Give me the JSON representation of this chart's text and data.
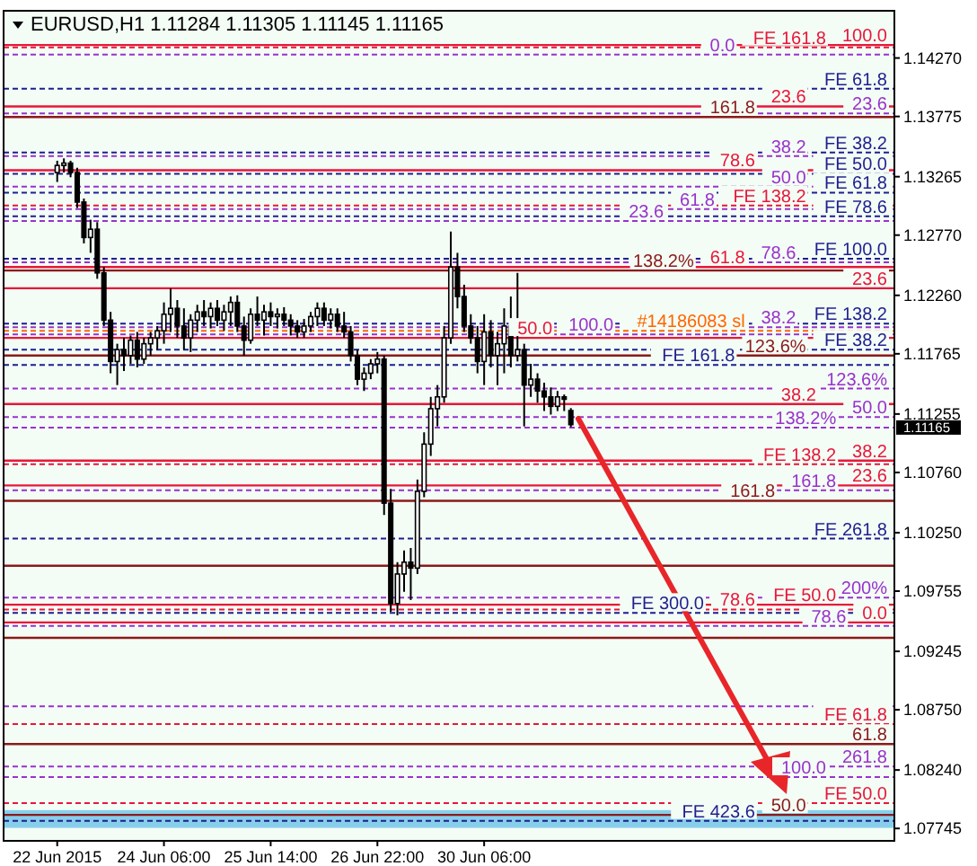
{
  "chart_data": {
    "type": "candlestick",
    "title": "EURUSD,H1  1.11284 1.11305 1.11145 1.11165",
    "categories": [
      "22 Jun 2015",
      null,
      null,
      null,
      null,
      null,
      null,
      null,
      null,
      null,
      null,
      null,
      null,
      null,
      null,
      null,
      "24 Jun 06:00",
      null,
      null,
      null,
      null,
      null,
      null,
      null,
      null,
      null,
      null,
      null,
      null,
      null,
      null,
      null,
      "25 Jun 14:00",
      null,
      null,
      null,
      null,
      null,
      null,
      null,
      null,
      null,
      null,
      null,
      null,
      null,
      null,
      null,
      "26 Jun 22:00",
      null,
      null,
      null,
      null,
      null,
      null,
      null,
      null,
      null,
      null,
      null,
      null,
      null,
      null,
      null,
      "30 Jun 06:00",
      null,
      null,
      null,
      null,
      null,
      null,
      null,
      null,
      null,
      null,
      null,
      null,
      null,
      null,
      null,
      null,
      null,
      null,
      null,
      null,
      null,
      null,
      null,
      null,
      null,
      null,
      null,
      null,
      null,
      null,
      null,
      null,
      null,
      null,
      null,
      null,
      null,
      null,
      null,
      null,
      null,
      null,
      null,
      null,
      null,
      null,
      null,
      null,
      null,
      null,
      null,
      null,
      null,
      null,
      null,
      null,
      null,
      null,
      null,
      null,
      null
    ],
    "ohlc": [
      [
        1.133,
        1.134,
        1.1322,
        1.1336
      ],
      [
        1.1336,
        1.1342,
        1.133,
        1.1338
      ],
      [
        1.1338,
        1.134,
        1.1326,
        1.133
      ],
      [
        1.133,
        1.1334,
        1.13,
        1.1305
      ],
      [
        1.1305,
        1.1308,
        1.127,
        1.1275
      ],
      [
        1.1275,
        1.129,
        1.1262,
        1.1282
      ],
      [
        1.1282,
        1.1288,
        1.124,
        1.1245
      ],
      [
        1.1245,
        1.125,
        1.12,
        1.1205
      ],
      [
        1.1205,
        1.1212,
        1.116,
        1.117
      ],
      [
        1.117,
        1.1185,
        1.115,
        1.118
      ],
      [
        1.118,
        1.119,
        1.1162,
        1.1175
      ],
      [
        1.1175,
        1.1192,
        1.1168,
        1.1188
      ],
      [
        1.1188,
        1.1195,
        1.1165,
        1.1172
      ],
      [
        1.1172,
        1.119,
        1.1168,
        1.1185
      ],
      [
        1.1185,
        1.1195,
        1.1175,
        1.119
      ],
      [
        1.119,
        1.12,
        1.118,
        1.1196
      ],
      [
        1.1196,
        1.122,
        1.1185,
        1.121
      ],
      [
        1.121,
        1.1232,
        1.1195,
        1.1215
      ],
      [
        1.1215,
        1.1222,
        1.119,
        1.12
      ],
      [
        1.12,
        1.1215,
        1.118,
        1.119
      ],
      [
        1.119,
        1.121,
        1.1178,
        1.1205
      ],
      [
        1.1205,
        1.1218,
        1.1195,
        1.1212
      ],
      [
        1.1212,
        1.1222,
        1.12,
        1.1208
      ],
      [
        1.1208,
        1.122,
        1.1198,
        1.1215
      ],
      [
        1.1215,
        1.1222,
        1.12,
        1.1205
      ],
      [
        1.1205,
        1.1218,
        1.1196,
        1.1212
      ],
      [
        1.1212,
        1.1225,
        1.12,
        1.122
      ],
      [
        1.122,
        1.1226,
        1.1195,
        1.12
      ],
      [
        1.12,
        1.1208,
        1.1175,
        1.1188
      ],
      [
        1.1188,
        1.1215,
        1.1185,
        1.121
      ],
      [
        1.121,
        1.1225,
        1.12,
        1.1205
      ],
      [
        1.1205,
        1.1218,
        1.1192,
        1.1212
      ],
      [
        1.1212,
        1.122,
        1.12,
        1.1208
      ],
      [
        1.1208,
        1.1215,
        1.1198,
        1.121
      ],
      [
        1.121,
        1.1216,
        1.12,
        1.1205
      ],
      [
        1.1205,
        1.121,
        1.1192,
        1.12
      ],
      [
        1.12,
        1.1205,
        1.119,
        1.1195
      ],
      [
        1.1195,
        1.1206,
        1.119,
        1.12
      ],
      [
        1.12,
        1.1212,
        1.1195,
        1.1208
      ],
      [
        1.1208,
        1.122,
        1.12,
        1.1215
      ],
      [
        1.1215,
        1.122,
        1.12,
        1.1205
      ],
      [
        1.1205,
        1.1215,
        1.1198,
        1.121
      ],
      [
        1.121,
        1.1215,
        1.1195,
        1.12
      ],
      [
        1.12,
        1.1212,
        1.119,
        1.1195
      ],
      [
        1.1195,
        1.12,
        1.117,
        1.1175
      ],
      [
        1.1175,
        1.118,
        1.115,
        1.1155
      ],
      [
        1.1155,
        1.1165,
        1.1145,
        1.116
      ],
      [
        1.116,
        1.1172,
        1.1155,
        1.1168
      ],
      [
        1.1168,
        1.1178,
        1.116,
        1.1172
      ],
      [
        1.1172,
        1.1175,
        1.104,
        1.105
      ],
      [
        1.105,
        1.1062,
        1.0958,
        1.0965
      ],
      [
        1.0965,
        1.1,
        1.0955,
        1.099
      ],
      [
        1.099,
        1.101,
        1.0975,
        1.1
      ],
      [
        1.1,
        1.1012,
        1.0968,
        1.0995
      ],
      [
        1.0995,
        1.107,
        1.099,
        1.106
      ],
      [
        1.106,
        1.111,
        1.1055,
        1.11
      ],
      [
        1.11,
        1.114,
        1.109,
        1.113
      ],
      [
        1.113,
        1.115,
        1.1115,
        1.114
      ],
      [
        1.114,
        1.12,
        1.1135,
        1.119
      ],
      [
        1.119,
        1.128,
        1.1185,
        1.125
      ],
      [
        1.125,
        1.1262,
        1.1215,
        1.1225
      ],
      [
        1.1225,
        1.1235,
        1.1195,
        1.12
      ],
      [
        1.12,
        1.121,
        1.1185,
        1.119
      ],
      [
        1.119,
        1.12,
        1.116,
        1.117
      ],
      [
        1.117,
        1.121,
        1.115,
        1.1195
      ],
      [
        1.1195,
        1.1205,
        1.1165,
        1.1175
      ],
      [
        1.1175,
        1.1195,
        1.115,
        1.1185
      ],
      [
        1.1185,
        1.1215,
        1.116,
        1.12
      ],
      [
        1.12,
        1.1225,
        1.1165,
        1.1175
      ],
      [
        1.1175,
        1.1245,
        1.117,
        1.118
      ],
      [
        1.118,
        1.1185,
        1.1115,
        1.115
      ],
      [
        1.115,
        1.1168,
        1.114,
        1.1155
      ],
      [
        1.1155,
        1.116,
        1.1135,
        1.1145
      ],
      [
        1.1145,
        1.1152,
        1.1128,
        1.114
      ],
      [
        1.114,
        1.1148,
        1.1125,
        1.1132
      ],
      [
        1.1132,
        1.1145,
        1.1128,
        1.114
      ],
      [
        1.114,
        1.1142,
        1.1128,
        1.1138
      ],
      [
        1.11284,
        1.11305,
        1.11145,
        1.11165
      ],
      null,
      null,
      null,
      null,
      null,
      null,
      null,
      null,
      null,
      null,
      null,
      null,
      null,
      null,
      null,
      null,
      null,
      null,
      null,
      null,
      null,
      null,
      null,
      null,
      null,
      null,
      null,
      null,
      null,
      null,
      null,
      null,
      null,
      null,
      null,
      null,
      null,
      null,
      null,
      null,
      null,
      null,
      null,
      null,
      null,
      null,
      null,
      null
    ],
    "color": "#000000",
    "ylim": [
      1.0764,
      1.1467
    ],
    "yticks": [
      {
        "value": 1.1427,
        "label": "1.14270"
      },
      {
        "value": 1.13775,
        "label": "1.13775"
      },
      {
        "value": 1.13265,
        "label": "1.13265"
      },
      {
        "value": 1.1277,
        "label": "1.12770"
      },
      {
        "value": 1.1226,
        "label": "1.12260"
      },
      {
        "value": 1.11765,
        "label": "1.11765"
      },
      {
        "value": 1.11255,
        "label": "1.11255"
      },
      {
        "value": 1.1076,
        "label": "1.10760"
      },
      {
        "value": 1.1025,
        "label": "1.10250"
      },
      {
        "value": 1.09755,
        "label": "1.09755"
      },
      {
        "value": 1.09245,
        "label": "1.09245"
      },
      {
        "value": 1.0875,
        "label": "1.08750"
      },
      {
        "value": 1.0824,
        "label": "1.08240"
      },
      {
        "value": 1.07745,
        "label": "1.07745"
      }
    ],
    "ref_lines": [
      {
        "axis": "y",
        "value": 1.1438,
        "color": "#e8173a",
        "line_style": "solid"
      },
      {
        "axis": "y",
        "value": 1.1436,
        "color": "#e8173a",
        "line_style": "dashed"
      },
      {
        "axis": "y",
        "value": 1.143,
        "color": "#9932cc",
        "line_style": "dashed"
      },
      {
        "axis": "y",
        "value": 1.1401,
        "color": "#1f1f8f",
        "line_style": "dashed"
      },
      {
        "axis": "y",
        "value": 1.1386,
        "color": "#e8173a",
        "line_style": "solid"
      },
      {
        "axis": "y",
        "value": 1.138,
        "color": "#9932cc",
        "line_style": "dashed"
      },
      {
        "axis": "y",
        "value": 1.1377,
        "color": "#8b1a1a",
        "line_style": "solid"
      },
      {
        "axis": "y",
        "value": 1.1347,
        "color": "#1f1f8f",
        "line_style": "dashed"
      },
      {
        "axis": "y",
        "value": 1.1344,
        "color": "#9932cc",
        "line_style": "dashed"
      },
      {
        "axis": "y",
        "value": 1.1332,
        "color": "#e8173a",
        "line_style": "solid"
      },
      {
        "axis": "y",
        "value": 1.1329,
        "color": "#1f1f8f",
        "line_style": "dashed"
      },
      {
        "axis": "y",
        "value": 1.1318,
        "color": "#9932cc",
        "line_style": "dashed"
      },
      {
        "axis": "y",
        "value": 1.1313,
        "color": "#1f1f8f",
        "line_style": "dashed"
      },
      {
        "axis": "y",
        "value": 1.1302,
        "color": "#e8173a",
        "line_style": "dashed"
      },
      {
        "axis": "y",
        "value": 1.1299,
        "color": "#9932cc",
        "line_style": "dashed"
      },
      {
        "axis": "y",
        "value": 1.1293,
        "color": "#1f1f8f",
        "line_style": "dashed"
      },
      {
        "axis": "y",
        "value": 1.1289,
        "color": "#9932cc",
        "line_style": "dashed"
      },
      {
        "axis": "y",
        "value": 1.1257,
        "color": "#1f1f8f",
        "line_style": "dashed"
      },
      {
        "axis": "y",
        "value": 1.1254,
        "color": "#9932cc",
        "line_style": "dashed"
      },
      {
        "axis": "y",
        "value": 1.125,
        "color": "#e8173a",
        "line_style": "solid"
      },
      {
        "axis": "y",
        "value": 1.1247,
        "color": "#8b1a1a",
        "line_style": "solid"
      },
      {
        "axis": "y",
        "value": 1.1232,
        "color": "#e8173a",
        "line_style": "solid"
      },
      {
        "axis": "y",
        "value": 1.1202,
        "color": "#1f1f8f",
        "line_style": "dashed"
      },
      {
        "axis": "y",
        "value": 1.1199,
        "color": "#9932cc",
        "line_style": "dashed"
      },
      {
        "axis": "y",
        "value": 1.1196,
        "color": "#ff6600",
        "line_style": "dashed"
      },
      {
        "axis": "y",
        "value": 1.1193,
        "color": "#9932cc",
        "line_style": "dashed"
      },
      {
        "axis": "y",
        "value": 1.119,
        "color": "#e8173a",
        "line_style": "solid"
      },
      {
        "axis": "y",
        "value": 1.118,
        "color": "#1f1f8f",
        "line_style": "dashed"
      },
      {
        "axis": "y",
        "value": 1.1175,
        "color": "#8b1a1a",
        "line_style": "solid"
      },
      {
        "axis": "y",
        "value": 1.1167,
        "color": "#1f1f8f",
        "line_style": "dashed"
      },
      {
        "axis": "y",
        "value": 1.1147,
        "color": "#9932cc",
        "line_style": "dashed"
      },
      {
        "axis": "y",
        "value": 1.1134,
        "color": "#e8173a",
        "line_style": "solid"
      },
      {
        "axis": "y",
        "value": 1.1123,
        "color": "#9932cc",
        "line_style": "dashed"
      },
      {
        "axis": "y",
        "value": 1.1114,
        "color": "#9932cc",
        "line_style": "dashed"
      },
      {
        "axis": "y",
        "value": 1.1086,
        "color": "#e8173a",
        "line_style": "solid"
      },
      {
        "axis": "y",
        "value": 1.1083,
        "color": "#e8173a",
        "line_style": "dashed"
      },
      {
        "axis": "y",
        "value": 1.1065,
        "color": "#e8173a",
        "line_style": "solid"
      },
      {
        "axis": "y",
        "value": 1.1061,
        "color": "#9932cc",
        "line_style": "dashed"
      },
      {
        "axis": "y",
        "value": 1.1052,
        "color": "#8b1a1a",
        "line_style": "solid"
      },
      {
        "axis": "y",
        "value": 1.102,
        "color": "#1f1f8f",
        "line_style": "dashed"
      },
      {
        "axis": "y",
        "value": 1.0997,
        "color": "#8b1a1a",
        "line_style": "solid"
      },
      {
        "axis": "y",
        "value": 1.097,
        "color": "#9932cc",
        "line_style": "dashed"
      },
      {
        "axis": "y",
        "value": 1.0964,
        "color": "#e8173a",
        "line_style": "solid"
      },
      {
        "axis": "y",
        "value": 1.096,
        "color": "#e8173a",
        "line_style": "dashed"
      },
      {
        "axis": "y",
        "value": 1.0957,
        "color": "#1f1f8f",
        "line_style": "dashed"
      },
      {
        "axis": "y",
        "value": 1.0949,
        "color": "#e8173a",
        "line_style": "solid"
      },
      {
        "axis": "y",
        "value": 1.0946,
        "color": "#9932cc",
        "line_style": "dashed"
      },
      {
        "axis": "y",
        "value": 1.0936,
        "color": "#8b1a1a",
        "line_style": "solid"
      },
      {
        "axis": "y",
        "value": 1.0878,
        "color": "#9932cc",
        "line_style": "dashed"
      },
      {
        "axis": "y",
        "value": 1.0863,
        "color": "#e8173a",
        "line_style": "dashed"
      },
      {
        "axis": "y",
        "value": 1.0846,
        "color": "#8b1a1a",
        "line_style": "solid"
      },
      {
        "axis": "y",
        "value": 1.0827,
        "color": "#9932cc",
        "line_style": "dashed"
      },
      {
        "axis": "y",
        "value": 1.0818,
        "color": "#9932cc",
        "line_style": "dashed"
      },
      {
        "axis": "y",
        "value": 1.0796,
        "color": "#e8173a",
        "line_style": "dashed"
      },
      {
        "axis": "y",
        "value": 1.0786,
        "color": "#8b1a1a",
        "line_style": "solid"
      },
      {
        "axis": "y",
        "value": 1.0781,
        "color": "#1f1f8f",
        "line_style": "dashed"
      }
    ],
    "bands": [
      {
        "axis": "y",
        "from": 1.0775,
        "to": 1.079,
        "color": "#87ceeb"
      }
    ],
    "annotations": [
      "1.11165",
      {
        "text": "100.0",
        "y": 1.1438
      },
      {
        "text": "FE 161.8",
        "y": 1.1436
      },
      {
        "text": "0.0",
        "y": 1.143
      },
      {
        "text": "FE 61.8",
        "y": 1.1401
      },
      {
        "text": "23.6",
        "y": 1.1386
      },
      {
        "text": "23.6",
        "y": 1.138
      },
      {
        "text": "161.8",
        "y": 1.1377
      },
      {
        "text": "FE 38.2",
        "y": 1.1347
      },
      {
        "text": "38.2",
        "y": 1.1344
      },
      {
        "text": "78.6",
        "y": 1.1332
      },
      {
        "text": "FE 50.0",
        "y": 1.1329
      },
      {
        "text": "50.0",
        "y": 1.1318
      },
      {
        "text": "FE 61.8",
        "y": 1.1313
      },
      {
        "text": "FE 138.2",
        "y": 1.1302
      },
      {
        "text": "61.8",
        "y": 1.1299
      },
      {
        "text": "FE 78.6",
        "y": 1.1293
      },
      {
        "text": "23.6",
        "y": 1.1289
      },
      {
        "text": "FE 100.0",
        "y": 1.1257
      },
      {
        "text": "78.6",
        "y": 1.1254
      },
      {
        "text": "61.8",
        "y": 1.125
      },
      {
        "text": "138.2%",
        "y": 1.1247
      },
      {
        "text": "23.6",
        "y": 1.1232
      },
      {
        "text": "FE 138.2",
        "y": 1.1202
      },
      {
        "text": "38.2",
        "y": 1.1199
      },
      {
        "text": "#14186083 sl",
        "y": 1.1196
      },
      {
        "text": "100.0",
        "y": 1.1193
      },
      {
        "text": "50.0",
        "y": 1.119
      },
      {
        "text": "FE 38.2",
        "y": 1.118
      },
      {
        "text": "123.6%",
        "y": 1.1175
      },
      {
        "text": "FE 161.8",
        "y": 1.1167
      },
      {
        "text": "123.6%",
        "y": 1.1147
      },
      {
        "text": "38.2",
        "y": 1.1134
      },
      {
        "text": "50.0",
        "y": 1.1123
      },
      {
        "text": "138.2%",
        "y": 1.1114
      },
      {
        "text": "38.2",
        "y": 1.1086
      },
      {
        "text": "FE 138.2",
        "y": 1.1083
      },
      {
        "text": "23.6",
        "y": 1.1065
      },
      {
        "text": "161.8",
        "y": 1.1061
      },
      {
        "text": "161.8",
        "y": 1.1052
      },
      {
        "text": "FE 261.8",
        "y": 1.102
      },
      {
        "text": "200%",
        "y": 1.097
      },
      {
        "text": "FE 50.0",
        "y": 1.0964
      },
      {
        "text": "78.6",
        "y": 1.096
      },
      {
        "text": "FE 300.0",
        "y": 1.0957
      },
      {
        "text": "0.0",
        "y": 1.0949
      },
      {
        "text": "78.6",
        "y": 1.0946
      },
      {
        "text": "FE 61.8",
        "y": 1.0863
      },
      {
        "text": "61.8",
        "y": 1.0846
      },
      {
        "text": "261.8",
        "y": 1.0827
      },
      {
        "text": "100.0",
        "y": 1.0818
      },
      {
        "text": "FE 50.0",
        "y": 1.0796
      },
      {
        "text": "50.0",
        "y": 1.0786
      },
      {
        "text": "FE 423.6",
        "y": 1.0781
      }
    ]
  }
}
